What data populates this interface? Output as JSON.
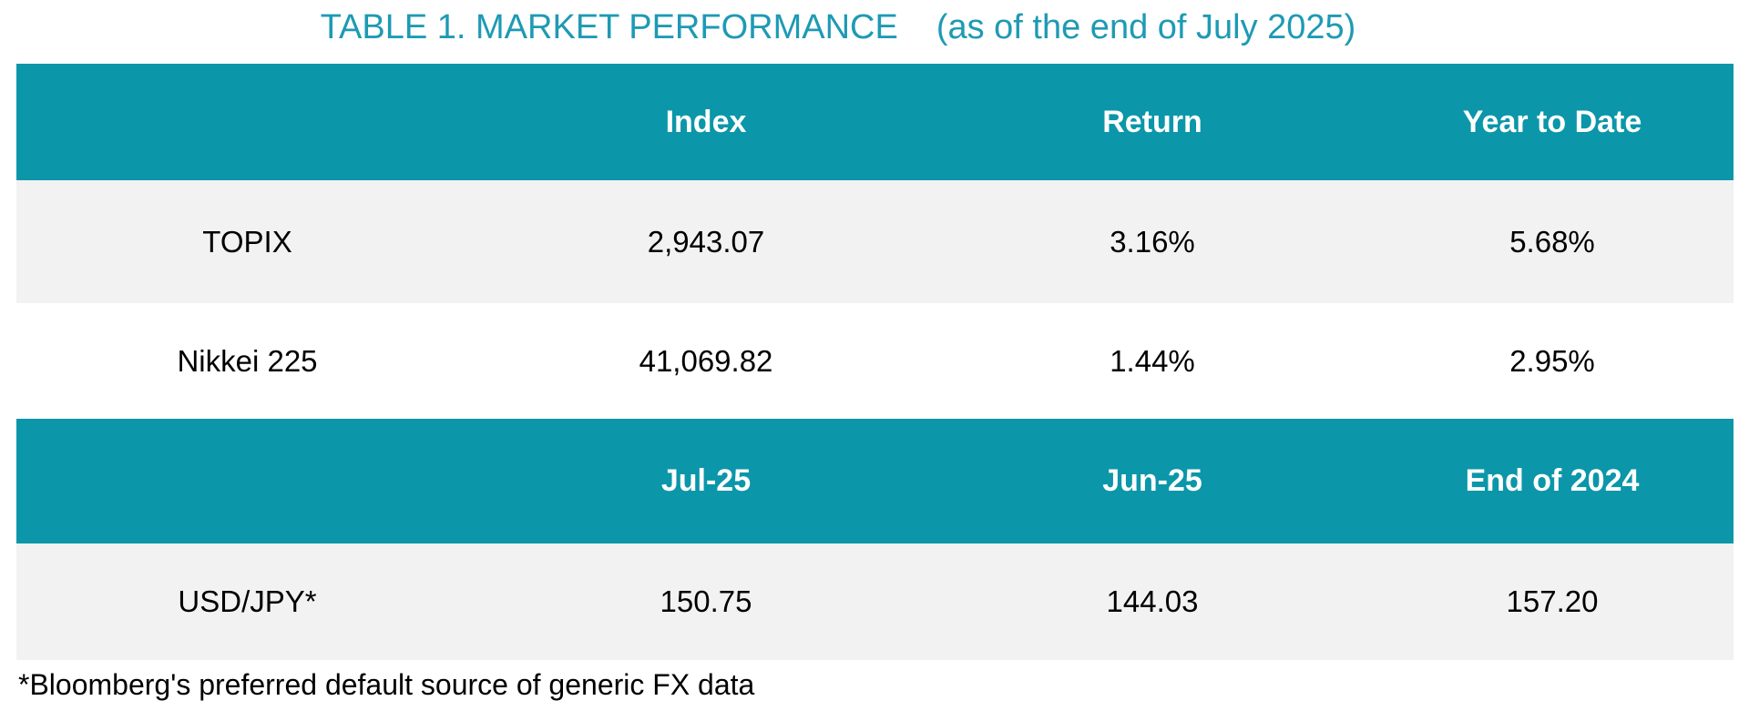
{
  "title": {
    "main": "TABLE 1. MARKET PERFORMANCE",
    "subtitle": "(as of the end of July 2025)"
  },
  "colors": {
    "header_bg": "#0B96A9",
    "title_text": "#1E9AB4",
    "alt_row_bg": "#F2F2F2",
    "white_row_bg": "#FFFFFF",
    "header_text": "#FFFFFF",
    "body_text": "#000000"
  },
  "index_table": {
    "headers": [
      "",
      "Index",
      "Return",
      "Year to Date"
    ],
    "rows": [
      {
        "label": "TOPIX",
        "index": "2,943.07",
        "return": "3.16%",
        "ytd": "5.68%"
      },
      {
        "label": "Nikkei 225",
        "index": "41,069.82",
        "return": "1.44%",
        "ytd": "2.95%"
      }
    ]
  },
  "fx_table": {
    "headers": [
      "",
      "Jul-25",
      "Jun-25",
      "End of 2024"
    ],
    "rows": [
      {
        "label": "USD/JPY*",
        "jul25": "150.75",
        "jun25": "144.03",
        "end2024": "157.20"
      }
    ]
  },
  "footnote": "*Bloomberg's preferred default source of generic FX data"
}
